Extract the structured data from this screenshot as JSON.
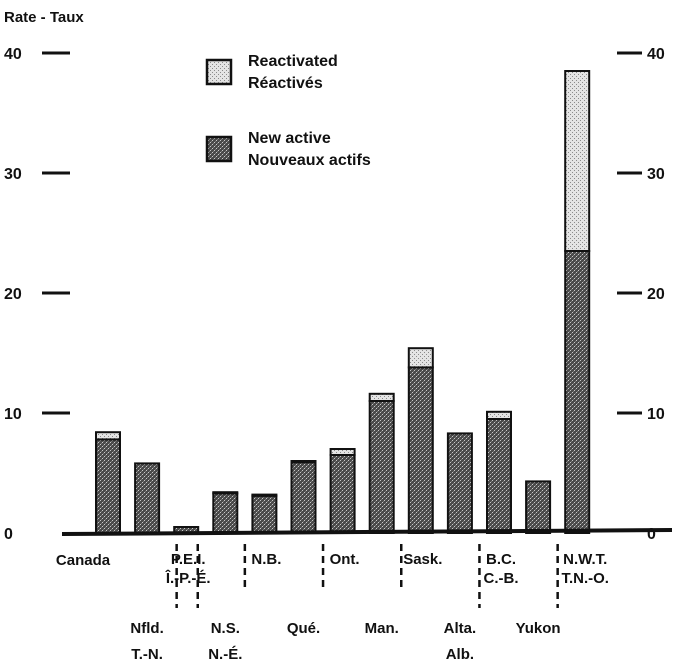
{
  "chart_data": {
    "type": "bar",
    "stacked": true,
    "title": "",
    "ylabel": "Rate - Taux",
    "xlabel": "",
    "ylim": [
      0,
      40
    ],
    "yticks": [
      0,
      10,
      20,
      30,
      40
    ],
    "grid": false,
    "legend_position": "top-center",
    "categories": [
      {
        "top": "Canada",
        "bottom": ""
      },
      {
        "top": "",
        "bottom": "Nfld.\nT.-N."
      },
      {
        "top": "P.E.I.\nÎ.-P.-É.",
        "bottom": ""
      },
      {
        "top": "",
        "bottom": "N.S.\nN.-É."
      },
      {
        "top": "N.B.",
        "bottom": ""
      },
      {
        "top": "",
        "bottom": "Qué."
      },
      {
        "top": "Ont.",
        "bottom": ""
      },
      {
        "top": "",
        "bottom": "Man."
      },
      {
        "top": "Sask.",
        "bottom": ""
      },
      {
        "top": "",
        "bottom": "Alta.\nAlb."
      },
      {
        "top": "B.C.\nC.-B.",
        "bottom": ""
      },
      {
        "top": "",
        "bottom": "Yukon"
      },
      {
        "top": "N.W.T.\nT.N.-O.",
        "bottom": ""
      }
    ],
    "series": [
      {
        "name": "New active\nNouveaux actifs",
        "values": [
          7.8,
          5.8,
          0.5,
          3.3,
          3.1,
          5.9,
          6.5,
          11.0,
          13.8,
          8.3,
          9.5,
          4.3,
          23.5
        ],
        "color": "#555555",
        "pattern": "dark"
      },
      {
        "name": "Reactivated\nRéactivés",
        "values": [
          0.6,
          0,
          0,
          0.1,
          0.1,
          0.1,
          0.5,
          0.6,
          1.6,
          0,
          0.6,
          0,
          15.0
        ],
        "color": "#d8d8d8",
        "pattern": "light"
      }
    ]
  }
}
